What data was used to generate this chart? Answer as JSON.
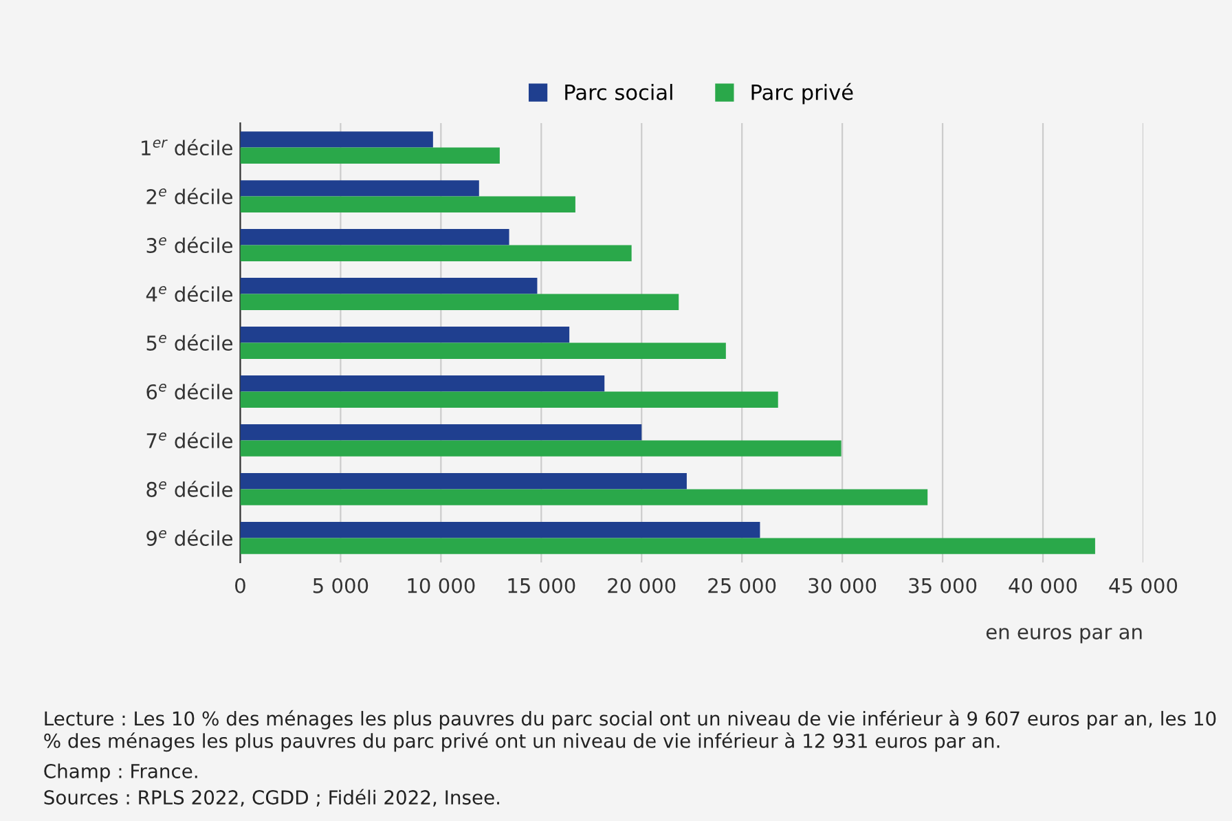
{
  "chart_data": {
    "type": "bar",
    "orientation": "horizontal",
    "categories": [
      "1$^{er}$ décile",
      "2$^{e}$ décile",
      "3$^{e}$ décile",
      "4$^{e}$ décile",
      "5$^{e}$ décile",
      "6$^{e}$ décile",
      "7$^{e}$ décile",
      "8$^{e}$ décile",
      "9$^{e}$ décile"
    ],
    "series": [
      {
        "name": "Parc social",
        "color": "#1f3f8f",
        "values": [
          9607,
          11900,
          13400,
          14800,
          16400,
          18150,
          20000,
          22250,
          25900
        ]
      },
      {
        "name": "Parc privé",
        "color": "#2aa84a",
        "values": [
          12931,
          16700,
          19500,
          21850,
          24200,
          26800,
          29950,
          34250,
          42600
        ]
      }
    ],
    "xlim": [
      0,
      45000
    ],
    "xticks": [
      0,
      {
        "value": 5000,
        "label": "5 000"
      },
      {
        "value": 10000,
        "label": "10 000"
      },
      {
        "value": 15000,
        "label": "15 000"
      },
      {
        "value": 20000,
        "label": "20 000"
      },
      {
        "value": 25000,
        "label": "25 000"
      },
      {
        "value": 30000,
        "label": "30 000"
      },
      {
        "value": 35000,
        "label": "35 000"
      },
      {
        "value": 40000,
        "label": "40 000"
      },
      {
        "value": 45000,
        "label": "45 000"
      }
    ],
    "xlabel": "en euros par an",
    "grid": "x",
    "legend": "top",
    "annotations": [
      "Lecture : Les 10 % des ménages les plus pauvres du parc social ont un niveau de vie inférieur à 9 607 euros par an, les 10 % des ménages les plus pauvres du parc privé ont un niveau de vie inférieur à 12 931 euros par an.",
      "Champ : France.",
      "Sources : RPLS 2022, CGDD ; Fidéli 2022, Insee."
    ]
  }
}
